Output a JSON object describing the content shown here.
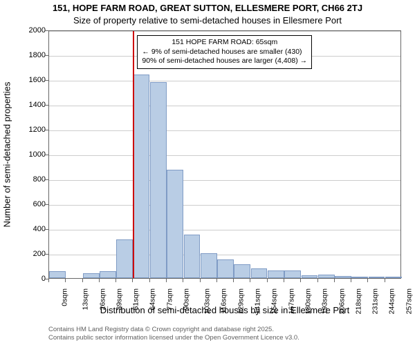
{
  "title_main": "151, HOPE FARM ROAD, GREAT SUTTON, ELLESMERE PORT, CH66 2TJ",
  "title_sub": "Size of property relative to semi-detached houses in Ellesmere Port",
  "chart": {
    "type": "histogram",
    "x_tick_step": 13,
    "x_ticks": [
      "0sqm",
      "13sqm",
      "26sqm",
      "39sqm",
      "51sqm",
      "64sqm",
      "77sqm",
      "90sqm",
      "103sqm",
      "116sqm",
      "129sqm",
      "141sqm",
      "154sqm",
      "167sqm",
      "180sqm",
      "193sqm",
      "206sqm",
      "218sqm",
      "231sqm",
      "244sqm",
      "257sqm"
    ],
    "xlabel": "Distribution of semi-detached houses by size in Ellesmere Port",
    "ylabel": "Number of semi-detached properties",
    "ylim": [
      0,
      2000
    ],
    "ytick_step": 200,
    "bar_fill": "#b9cde5",
    "bar_border": "#7f9bc5",
    "grid_color": "#cccccc",
    "background_color": "#ffffff",
    "values": [
      55,
      0,
      40,
      55,
      310,
      1640,
      1580,
      870,
      350,
      200,
      150,
      110,
      80,
      60,
      60,
      20,
      30,
      15,
      8,
      8,
      6
    ],
    "marker_x": 65,
    "marker_color": "#cc0000",
    "annotation": {
      "title": "151 HOPE FARM ROAD: 65sqm",
      "line1": "← 9% of semi-detached houses are smaller (430)",
      "line2": "90% of semi-detached houses are larger (4,408) →"
    }
  },
  "attribution": {
    "line1": "Contains HM Land Registry data © Crown copyright and database right 2025.",
    "line2": "Contains public sector information licensed under the Open Government Licence v3.0."
  },
  "fonts": {
    "title_size_pt": 13,
    "axis_label_size_pt": 13,
    "tick_label_size_pt": 11,
    "annotation_size_pt": 10.5,
    "attribution_size_pt": 9.5
  }
}
